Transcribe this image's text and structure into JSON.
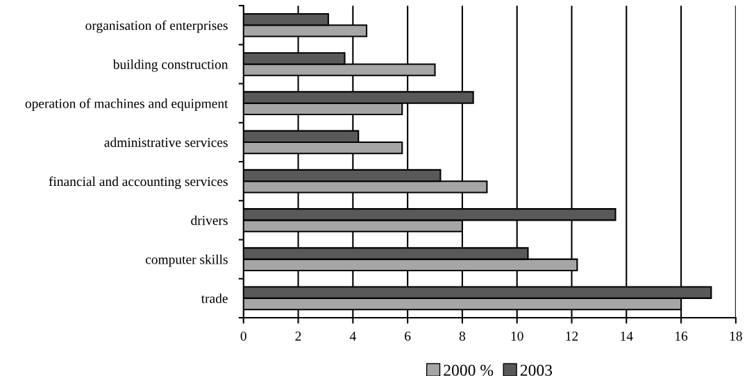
{
  "chart_data": {
    "type": "bar",
    "orientation": "horizontal",
    "categories": [
      "organisation of enterprises",
      "building construction",
      "operation of machines and equipment",
      "administrative services",
      "financial and accounting services",
      "drivers",
      "computer skills",
      "trade"
    ],
    "series": [
      {
        "name": "2000 %",
        "color": "#a6a6a6",
        "values": [
          4.5,
          7.0,
          5.8,
          5.8,
          8.9,
          8.0,
          12.2,
          16.0
        ]
      },
      {
        "name": "2003",
        "color": "#595959",
        "values": [
          3.1,
          3.7,
          8.4,
          4.2,
          7.2,
          13.6,
          10.4,
          17.1
        ]
      }
    ],
    "xlim": [
      0,
      18
    ],
    "xticks": [
      0,
      2,
      4,
      6,
      8,
      10,
      12,
      14,
      16,
      18
    ],
    "grid": "x",
    "legend": "bottom"
  }
}
